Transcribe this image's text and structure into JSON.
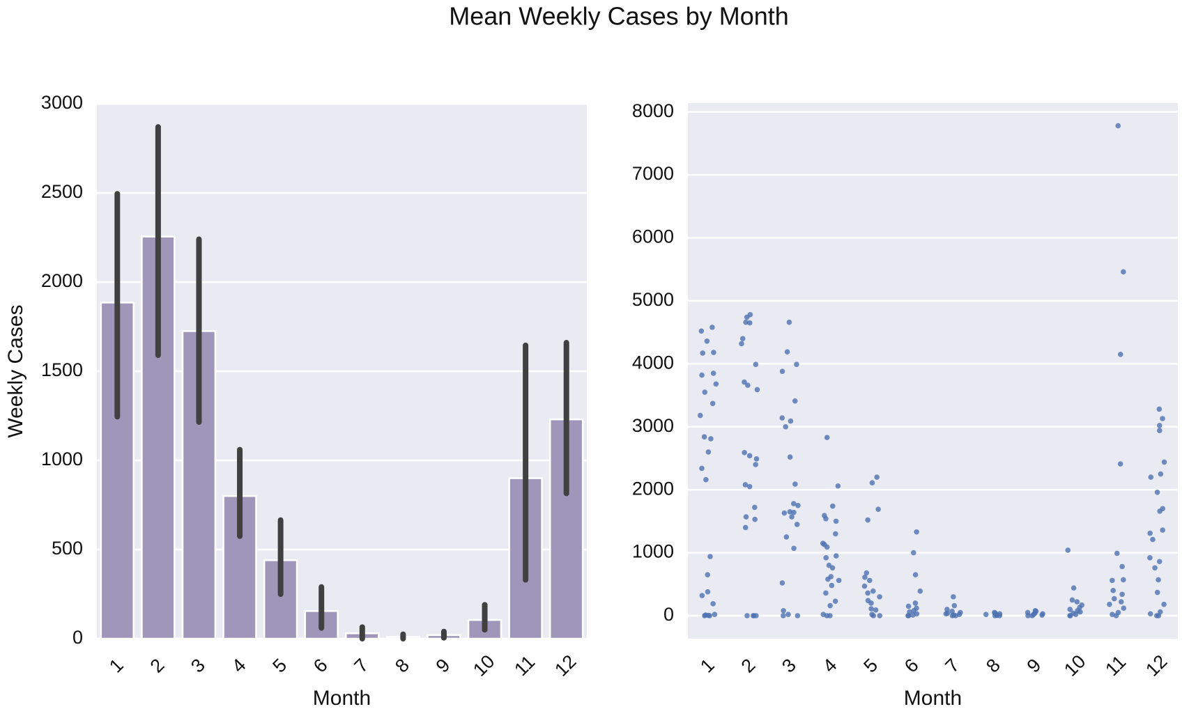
{
  "title": "Mean Weekly Cases by Month",
  "chart_data": [
    {
      "type": "bar",
      "x_label": "Month",
      "y_label": "Weekly Cases",
      "categories": [
        "1",
        "2",
        "3",
        "4",
        "5",
        "6",
        "7",
        "8",
        "9",
        "10",
        "11",
        "12"
      ],
      "values": [
        1885,
        2255,
        1725,
        800,
        440,
        155,
        30,
        10,
        20,
        105,
        900,
        1230
      ],
      "ci_low": [
        1245,
        1590,
        1215,
        575,
        250,
        60,
        0,
        0,
        5,
        50,
        330,
        815
      ],
      "ci_high": [
        2495,
        2870,
        2240,
        1060,
        665,
        290,
        65,
        25,
        40,
        190,
        1645,
        1660
      ],
      "color": "#9f97ba",
      "error_color": "#404040",
      "background": "#eaeaf2",
      "ylim": [
        0,
        3000
      ],
      "yticks": [
        0,
        500,
        1000,
        1500,
        2000,
        2500,
        3000
      ],
      "grid": true
    },
    {
      "type": "strip",
      "x_label": "Month",
      "categories": [
        "1",
        "2",
        "3",
        "4",
        "5",
        "6",
        "7",
        "8",
        "9",
        "10",
        "11",
        "12"
      ],
      "points": [
        [
          4580,
          4520,
          4360,
          4180,
          4170,
          3850,
          3820,
          3680,
          3550,
          3370,
          3180,
          2840,
          2810,
          2600,
          2340,
          2160,
          940,
          650,
          380,
          320,
          190,
          20,
          10,
          5,
          0,
          0
        ],
        [
          4780,
          4740,
          4660,
          4650,
          4400,
          4320,
          3990,
          3710,
          3660,
          3590,
          2590,
          2540,
          2490,
          2400,
          2080,
          2050,
          1720,
          1570,
          1530,
          1400,
          0,
          0,
          0,
          0
        ],
        [
          4660,
          4190,
          3990,
          3880,
          3410,
          3140,
          3090,
          3000,
          2520,
          2090,
          1780,
          1750,
          1650,
          1640,
          1630,
          1570,
          1450,
          1250,
          1070,
          520,
          80,
          20,
          0,
          0
        ],
        [
          2830,
          2060,
          1740,
          1590,
          1540,
          1500,
          1300,
          1150,
          1130,
          1090,
          950,
          920,
          800,
          760,
          620,
          580,
          560,
          480,
          360,
          230,
          160,
          20,
          0,
          0
        ],
        [
          2200,
          2110,
          1690,
          1520,
          680,
          610,
          560,
          470,
          390,
          360,
          300,
          240,
          200,
          110,
          90,
          20,
          0,
          0
        ],
        [
          1330,
          1000,
          650,
          390,
          200,
          150,
          120,
          80,
          60,
          30,
          10,
          0,
          0
        ],
        [
          300,
          160,
          100,
          70,
          50,
          40,
          30,
          20,
          10,
          0,
          0
        ],
        [
          50,
          40,
          30,
          20,
          10,
          5,
          0,
          0
        ],
        [
          80,
          70,
          50,
          40,
          30,
          20,
          10,
          0,
          0
        ],
        [
          1040,
          440,
          250,
          220,
          170,
          130,
          100,
          80,
          60,
          40,
          20,
          0,
          0
        ],
        [
          7780,
          5460,
          4150,
          2410,
          990,
          780,
          570,
          560,
          400,
          340,
          270,
          220,
          180,
          120,
          50,
          20,
          0
        ],
        [
          3280,
          3130,
          3020,
          2940,
          2440,
          2250,
          2200,
          1960,
          1700,
          1660,
          1360,
          1310,
          1210,
          920,
          860,
          760,
          570,
          370,
          180,
          60,
          30,
          0,
          0
        ]
      ],
      "color": "#4c72b0",
      "background": "#eaeaf2",
      "ylim": [
        -365,
        8140
      ],
      "yticks": [
        0,
        1000,
        2000,
        3000,
        4000,
        5000,
        6000,
        7000,
        8000
      ],
      "grid": true
    }
  ]
}
